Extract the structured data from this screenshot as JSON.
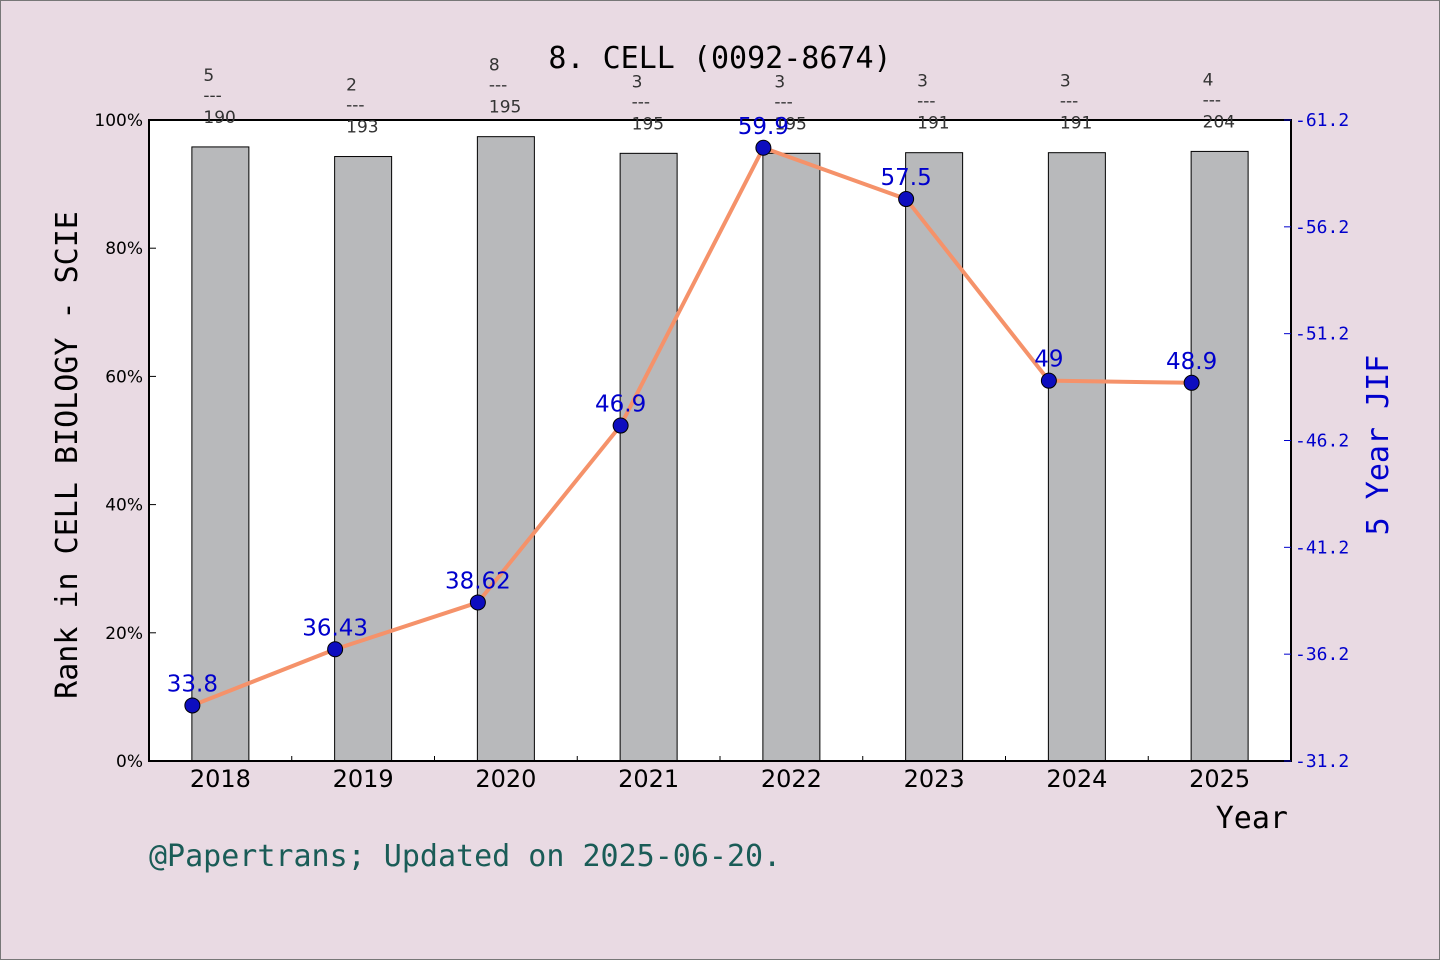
{
  "chart_data": {
    "type": "bar",
    "title": "8. CELL (0092-8674)",
    "xlabel": "Year",
    "ylabel": "Rank in CELL BIOLOGY - SCIE",
    "y2label": "5 Year JIF",
    "categories": [
      "2018",
      "2019",
      "2020",
      "2021",
      "2022",
      "2023",
      "2024",
      "2025"
    ],
    "ylim": [
      0,
      100
    ],
    "yticks": [
      "0%",
      "20%",
      "40%",
      "60%",
      "80%",
      "100%"
    ],
    "y2lim": [
      31.2,
      61.2
    ],
    "y2ticks": [
      "31.2",
      "36.2",
      "41.2",
      "46.2",
      "51.2",
      "56.2",
      "61.2"
    ],
    "bars": {
      "values": [
        95.8,
        94.3,
        97.4,
        94.8,
        94.8,
        94.9,
        94.9,
        95.1
      ],
      "rank": [
        "5",
        "2",
        "8",
        "3",
        "3",
        "3",
        "3",
        "4"
      ],
      "total": [
        "190",
        "193",
        "195",
        "195",
        "195",
        "191",
        "191",
        "204"
      ],
      "separator": "---"
    },
    "line": {
      "values": [
        33.8,
        36.43,
        38.62,
        46.9,
        59.9,
        57.5,
        49,
        48.9
      ],
      "labels": [
        "33.8",
        "36.43",
        "38.62",
        "46.9",
        "59.9",
        "57.5",
        "49",
        "48.9"
      ]
    },
    "colors": {
      "bar": "#b8b9bb",
      "line": "#f5926a",
      "marker": "#0d0dbf",
      "right_axis": "#0000cc",
      "footer": "#1a5c57",
      "background": "#e9dae3"
    },
    "grid": false
  },
  "footer": "@Papertrans; Updated on 2025-06-20."
}
